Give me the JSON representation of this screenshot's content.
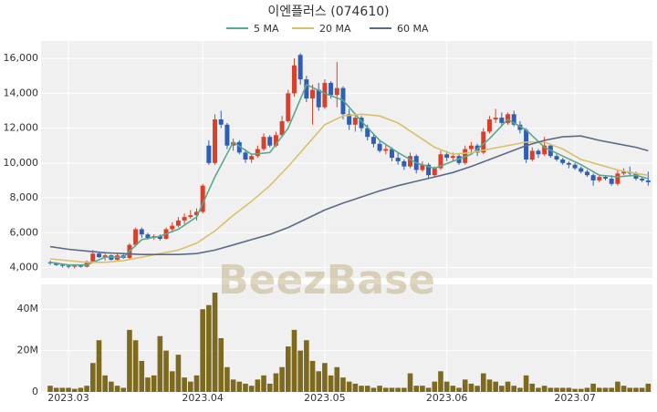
{
  "chart_data": {
    "type": "candlestick",
    "title": "이엔플러스 (074610)",
    "watermark": "BeezBase",
    "up_color": "#d8402b",
    "down_color": "#2f5fb3",
    "ylim": [
      3400,
      17000
    ],
    "yticks": [
      {
        "value": 4000,
        "label": "4,000"
      },
      {
        "value": 6000,
        "label": "6,000"
      },
      {
        "value": 8000,
        "label": "8,000"
      },
      {
        "value": 10000,
        "label": "10,000"
      },
      {
        "value": 12000,
        "label": "12,000"
      },
      {
        "value": 14000,
        "label": "14,000"
      },
      {
        "value": 16000,
        "label": "16,000"
      }
    ],
    "xticks": [
      {
        "value": 3,
        "label": "2023.03"
      },
      {
        "value": 25,
        "label": "2023.04"
      },
      {
        "value": 45,
        "label": "2023.05"
      },
      {
        "value": 65,
        "label": "2023.06"
      },
      {
        "value": 86,
        "label": "2023.07"
      }
    ],
    "grid": true,
    "candles": [
      [
        4300,
        4400,
        4150,
        4250
      ],
      [
        4250,
        4300,
        4100,
        4150
      ],
      [
        4150,
        4200,
        4000,
        4100
      ],
      [
        4100,
        4150,
        3950,
        4050
      ],
      [
        4050,
        4150,
        3950,
        4100
      ],
      [
        4100,
        4150,
        4000,
        4050
      ],
      [
        4050,
        4400,
        4000,
        4350
      ],
      [
        4350,
        5000,
        4300,
        4800
      ],
      [
        4800,
        4900,
        4550,
        4600
      ],
      [
        4600,
        4800,
        4400,
        4700
      ],
      [
        4700,
        4750,
        4400,
        4450
      ],
      [
        4450,
        4800,
        4350,
        4700
      ],
      [
        4700,
        4850,
        4500,
        4550
      ],
      [
        4550,
        5400,
        4500,
        5300
      ],
      [
        5300,
        6300,
        5200,
        6200
      ],
      [
        6200,
        6300,
        5700,
        5900
      ],
      [
        5900,
        6000,
        5600,
        5700
      ],
      [
        5700,
        5900,
        5600,
        5800
      ],
      [
        5800,
        5900,
        5550,
        5650
      ],
      [
        5650,
        6300,
        5600,
        6200
      ],
      [
        6200,
        6600,
        6000,
        6400
      ],
      [
        6400,
        6900,
        6300,
        6700
      ],
      [
        6700,
        7100,
        6500,
        6900
      ],
      [
        6900,
        7300,
        6800,
        7000
      ],
      [
        7000,
        7400,
        6700,
        7200
      ],
      [
        7200,
        8800,
        7100,
        8700
      ],
      [
        11000,
        11300,
        9900,
        10000
      ],
      [
        10000,
        12800,
        9900,
        12500
      ],
      [
        12500,
        13000,
        12000,
        12200
      ],
      [
        12200,
        12300,
        10800,
        11000
      ],
      [
        11000,
        11400,
        10700,
        11200
      ],
      [
        11200,
        11300,
        10500,
        10600
      ],
      [
        10600,
        10800,
        10000,
        10200
      ],
      [
        10200,
        10500,
        10000,
        10400
      ],
      [
        10400,
        11000,
        10300,
        10800
      ],
      [
        10800,
        11700,
        10700,
        11500
      ],
      [
        11500,
        11600,
        10900,
        11000
      ],
      [
        11000,
        11800,
        10900,
        11600
      ],
      [
        11600,
        12700,
        11500,
        12400
      ],
      [
        12400,
        14200,
        12300,
        14000
      ],
      [
        14000,
        16000,
        13800,
        15600
      ],
      [
        16200,
        16300,
        14500,
        14800
      ],
      [
        14800,
        15000,
        13500,
        13700
      ],
      [
        13700,
        14500,
        12200,
        14200
      ],
      [
        14200,
        14600,
        13000,
        13200
      ],
      [
        13200,
        14800,
        13100,
        14600
      ],
      [
        14600,
        14700,
        13700,
        13900
      ],
      [
        13900,
        15800,
        13200,
        14300
      ],
      [
        14300,
        14400,
        12500,
        12800
      ],
      [
        12800,
        13100,
        11900,
        12200
      ],
      [
        12200,
        12800,
        11800,
        12600
      ],
      [
        12600,
        12700,
        11800,
        12000
      ],
      [
        12000,
        12200,
        11300,
        11500
      ],
      [
        11500,
        11700,
        10900,
        11100
      ],
      [
        11100,
        11300,
        10600,
        10700
      ],
      [
        10700,
        11100,
        10500,
        10800
      ],
      [
        10800,
        10900,
        10100,
        10300
      ],
      [
        10300,
        10600,
        9900,
        10100
      ],
      [
        10100,
        10200,
        9600,
        9800
      ],
      [
        9800,
        10600,
        9700,
        10400
      ],
      [
        10400,
        10500,
        9400,
        9600
      ],
      [
        9600,
        10100,
        9500,
        9900
      ],
      [
        9900,
        10000,
        9100,
        9300
      ],
      [
        9300,
        9800,
        9200,
        9700
      ],
      [
        9700,
        10700,
        9600,
        10500
      ],
      [
        10500,
        10700,
        10100,
        10300
      ],
      [
        10300,
        10600,
        10100,
        10400
      ],
      [
        10400,
        10500,
        9900,
        10000
      ],
      [
        10000,
        11000,
        9900,
        10800
      ],
      [
        10800,
        11200,
        10600,
        11000
      ],
      [
        11000,
        11100,
        10400,
        10600
      ],
      [
        10600,
        12000,
        10500,
        11800
      ],
      [
        11800,
        12700,
        11700,
        12500
      ],
      [
        12500,
        13100,
        12300,
        12600
      ],
      [
        12600,
        12900,
        12100,
        12300
      ],
      [
        12300,
        12900,
        12200,
        12800
      ],
      [
        12800,
        13000,
        12100,
        12200
      ],
      [
        12200,
        12400,
        11700,
        11900
      ],
      [
        11900,
        12000,
        10000,
        10200
      ],
      [
        10200,
        10900,
        10100,
        10700
      ],
      [
        10700,
        10800,
        10300,
        10500
      ],
      [
        10500,
        11500,
        10400,
        11000
      ],
      [
        11000,
        11100,
        10300,
        10400
      ],
      [
        10400,
        10600,
        10100,
        10200
      ],
      [
        10200,
        10300,
        9900,
        10000
      ],
      [
        10000,
        10100,
        9700,
        9900
      ],
      [
        9900,
        10000,
        9600,
        9700
      ],
      [
        9700,
        9800,
        9400,
        9500
      ],
      [
        9500,
        9600,
        9200,
        9300
      ],
      [
        9300,
        9400,
        8700,
        9000
      ],
      [
        9000,
        9300,
        8900,
        9200
      ],
      [
        9200,
        9300,
        9000,
        9100
      ],
      [
        9100,
        9300,
        8700,
        8800
      ],
      [
        8800,
        9600,
        8700,
        9400
      ],
      [
        9400,
        9700,
        9300,
        9500
      ],
      [
        9500,
        9800,
        9300,
        9400
      ],
      [
        9400,
        9500,
        9000,
        9100
      ],
      [
        9100,
        9200,
        8900,
        9000
      ],
      [
        9000,
        9500,
        8700,
        8900
      ]
    ],
    "series": [
      {
        "name": "5 MA",
        "color": "#5aa98a",
        "x": [
          0,
          3,
          6,
          9,
          12,
          15,
          18,
          21,
          24,
          27,
          30,
          33,
          36,
          39,
          42,
          45,
          48,
          51,
          54,
          57,
          60,
          63,
          66,
          69,
          72,
          75,
          78,
          81,
          84,
          87,
          90,
          93,
          96,
          98
        ],
        "values": [
          4300,
          4150,
          4150,
          4600,
          4600,
          5600,
          5800,
          6200,
          6900,
          9200,
          11200,
          10500,
          10600,
          12000,
          14500,
          14000,
          13600,
          12400,
          11300,
          10600,
          10000,
          9700,
          10100,
          10500,
          11400,
          12500,
          11900,
          10900,
          10400,
          9900,
          9300,
          9200,
          9300,
          9100
        ]
      },
      {
        "name": "20 MA",
        "color": "#d9c16c",
        "x": [
          0,
          3,
          6,
          9,
          12,
          15,
          18,
          21,
          24,
          27,
          30,
          33,
          36,
          39,
          42,
          45,
          48,
          51,
          54,
          57,
          60,
          63,
          66,
          69,
          72,
          75,
          78,
          81,
          84,
          87,
          90,
          93,
          96,
          98
        ],
        "values": [
          4500,
          4400,
          4300,
          4300,
          4400,
          4600,
          4800,
          5000,
          5400,
          6100,
          7000,
          7800,
          8700,
          9800,
          11000,
          12200,
          12700,
          12800,
          12700,
          12300,
          11600,
          10900,
          10500,
          10600,
          10800,
          11000,
          11200,
          11200,
          10800,
          10200,
          9900,
          9600,
          9400,
          9300
        ]
      },
      {
        "name": "60 MA",
        "color": "#5b6a86",
        "x": [
          0,
          3,
          6,
          9,
          12,
          15,
          18,
          21,
          24,
          27,
          30,
          33,
          36,
          39,
          42,
          45,
          48,
          51,
          54,
          57,
          60,
          63,
          66,
          69,
          72,
          75,
          78,
          81,
          84,
          87,
          90,
          93,
          96,
          98
        ],
        "values": [
          5200,
          5050,
          4950,
          4850,
          4800,
          4750,
          4750,
          4750,
          4800,
          5000,
          5300,
          5600,
          5900,
          6300,
          6800,
          7300,
          7700,
          8050,
          8400,
          8700,
          8950,
          9200,
          9450,
          9800,
          10200,
          10600,
          11000,
          11300,
          11500,
          11550,
          11300,
          11100,
          10900,
          10700
        ]
      }
    ],
    "volume": {
      "type": "bar",
      "color": "#7d6a1f",
      "ylim": [
        0,
        52000000
      ],
      "yticks": [
        0,
        {
          "value": 20000000,
          "label": "20M"
        },
        {
          "value": 40000000,
          "label": "40M"
        }
      ],
      "values": [
        3000000,
        2000000,
        2000000,
        2000000,
        1500000,
        2000000,
        3000000,
        14000000,
        25000000,
        8000000,
        5000000,
        3000000,
        2000000,
        30000000,
        25000000,
        15000000,
        7000000,
        8000000,
        27000000,
        20000000,
        10000000,
        18000000,
        7000000,
        5000000,
        8000000,
        40000000,
        42000000,
        48000000,
        26000000,
        12000000,
        6000000,
        5000000,
        4000000,
        3000000,
        6000000,
        8000000,
        4000000,
        9000000,
        12000000,
        22000000,
        30000000,
        20000000,
        25000000,
        15000000,
        10000000,
        14000000,
        8000000,
        12000000,
        7000000,
        5000000,
        4000000,
        3000000,
        3000000,
        2000000,
        3000000,
        2000000,
        2000000,
        2000000,
        2000000,
        9000000,
        3000000,
        3000000,
        2000000,
        5000000,
        10000000,
        5000000,
        3000000,
        2000000,
        6000000,
        4000000,
        3000000,
        9000000,
        6000000,
        5000000,
        3000000,
        5000000,
        3000000,
        2000000,
        8000000,
        4000000,
        2000000,
        3000000,
        2000000,
        2000000,
        2000000,
        2000000,
        1500000,
        1500000,
        2000000,
        4000000,
        2000000,
        2000000,
        2000000,
        5000000,
        3000000,
        2000000,
        2000000,
        2000000,
        4000000
      ]
    }
  }
}
